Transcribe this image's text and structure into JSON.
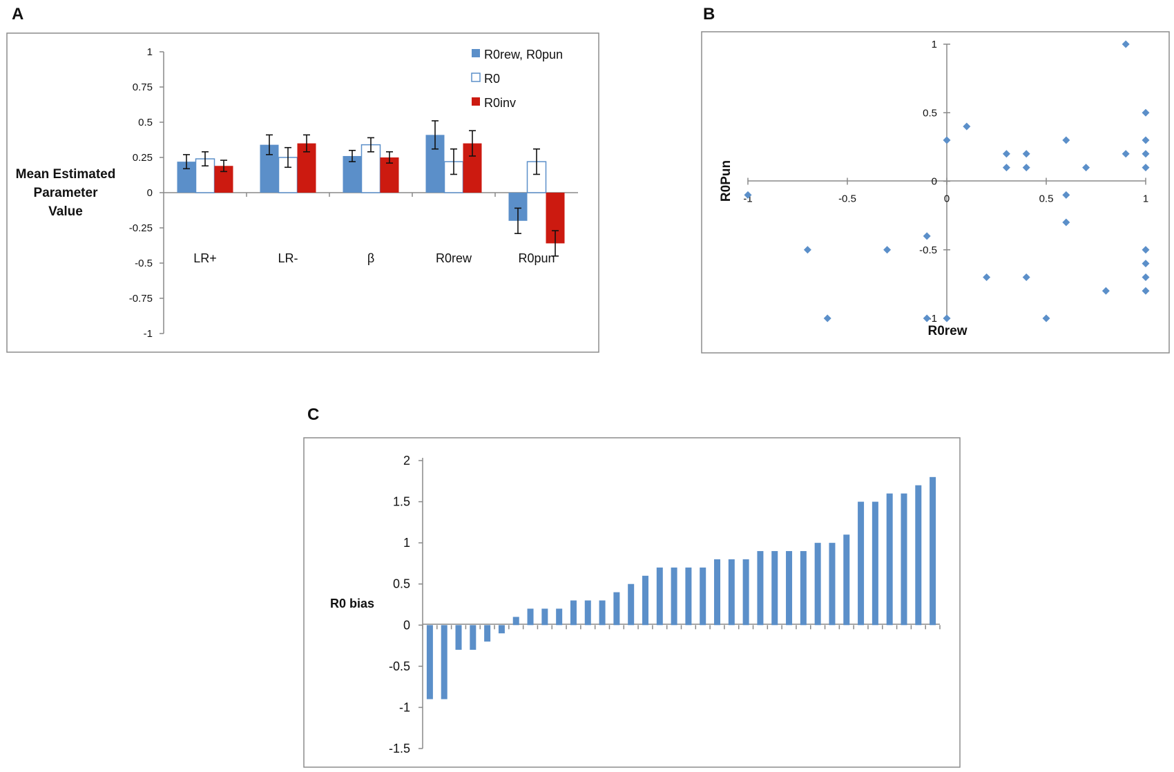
{
  "panel_labels": [
    "A",
    "B",
    "C"
  ],
  "colors": {
    "blue": "#5b8fc9",
    "red": "#cc1a10",
    "white": "#ffffff",
    "error": "#111111"
  },
  "chart_data": [
    {
      "panel": "A",
      "type": "bar",
      "ylabel_lines": [
        "Mean Estimated",
        "Parameter",
        "Value"
      ],
      "ylim": [
        -1,
        1
      ],
      "yticks": [
        "1",
        "0.75",
        "0.5",
        "0.25",
        "0",
        "-0.25",
        "-0.5",
        "-0.75",
        "-1"
      ],
      "categories": [
        "LR+",
        "LR-",
        "β",
        "R0rew",
        "R0pun"
      ],
      "series": [
        {
          "name": "R0rew, R0pun",
          "style": "blue",
          "values": [
            0.22,
            0.34,
            0.26,
            0.41,
            -0.2
          ],
          "errors": [
            0.05,
            0.07,
            0.04,
            0.1,
            0.09
          ]
        },
        {
          "name": "R0",
          "style": "white",
          "values": [
            0.24,
            0.25,
            0.34,
            0.22,
            0.22
          ],
          "errors": [
            0.05,
            0.07,
            0.05,
            0.09,
            0.09
          ]
        },
        {
          "name": "R0inv",
          "style": "red",
          "values": [
            0.19,
            0.35,
            0.25,
            0.35,
            -0.36
          ],
          "errors": [
            0.04,
            0.06,
            0.04,
            0.09,
            0.09
          ]
        }
      ]
    },
    {
      "panel": "B",
      "type": "scatter",
      "xlabel": "R0rew",
      "ylabel": "R0Pun",
      "xlim": [
        -1,
        1
      ],
      "ylim": [
        -1,
        1
      ],
      "xticks": [
        "-1",
        "-0.5",
        "0",
        "0.5",
        "1"
      ],
      "yticks": [
        "1",
        "0.5",
        "0",
        "-0.5",
        "-1"
      ],
      "points": [
        [
          0.9,
          1.0
        ],
        [
          1.0,
          0.5
        ],
        [
          0.1,
          0.4
        ],
        [
          0.0,
          0.3
        ],
        [
          0.6,
          0.3
        ],
        [
          1.0,
          0.3
        ],
        [
          0.3,
          0.2
        ],
        [
          0.4,
          0.2
        ],
        [
          0.9,
          0.2
        ],
        [
          1.0,
          0.2
        ],
        [
          0.3,
          0.1
        ],
        [
          0.4,
          0.1
        ],
        [
          0.7,
          0.1
        ],
        [
          1.0,
          0.1
        ],
        [
          -1.0,
          -0.1
        ],
        [
          0.6,
          -0.1
        ],
        [
          0.6,
          -0.3
        ],
        [
          -0.1,
          -0.4
        ],
        [
          -0.7,
          -0.5
        ],
        [
          -0.3,
          -0.5
        ],
        [
          1.0,
          -0.5
        ],
        [
          1.0,
          -0.6
        ],
        [
          0.2,
          -0.7
        ],
        [
          0.4,
          -0.7
        ],
        [
          1.0,
          -0.7
        ],
        [
          0.8,
          -0.8
        ],
        [
          1.0,
          -0.8
        ],
        [
          -0.6,
          -1.0
        ],
        [
          -0.1,
          -1.0
        ],
        [
          0.0,
          -1.0
        ],
        [
          0.5,
          -1.0
        ]
      ]
    },
    {
      "panel": "C",
      "type": "bar",
      "ylabel": "R0 bias",
      "ylim": [
        -1.5,
        2
      ],
      "yticks": [
        "2",
        "1.5",
        "1",
        "0.5",
        "0",
        "-0.5",
        "-1",
        "-1.5"
      ],
      "values": [
        -0.9,
        -0.9,
        -0.3,
        -0.3,
        -0.2,
        -0.1,
        0.1,
        0.2,
        0.2,
        0.2,
        0.3,
        0.3,
        0.3,
        0.4,
        0.5,
        0.6,
        0.7,
        0.7,
        0.7,
        0.7,
        0.8,
        0.8,
        0.8,
        0.9,
        0.9,
        0.9,
        0.9,
        1.0,
        1.0,
        1.1,
        1.5,
        1.5,
        1.6,
        1.6,
        1.7,
        1.8
      ]
    }
  ]
}
